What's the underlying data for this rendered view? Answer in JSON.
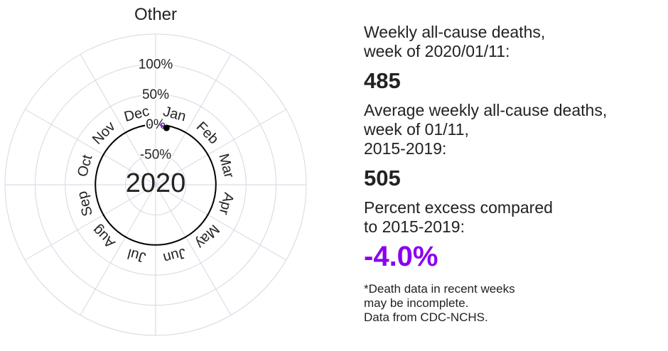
{
  "chart_data": {
    "type": "radial-line",
    "title": "Other",
    "center_label": "2020",
    "radial_axis": {
      "labels": [
        "100%",
        "50%",
        "0%",
        "-50%"
      ],
      "values": [
        100,
        50,
        0,
        -50
      ],
      "range": [
        -100,
        150
      ]
    },
    "months": [
      "Jan",
      "Feb",
      "Mar",
      "Apr",
      "May",
      "Jun",
      "Jul",
      "Aug",
      "Sep",
      "Oct",
      "Nov",
      "Dec"
    ],
    "grid": true,
    "series": [
      {
        "name": "Percent excess 2020",
        "color": "#8a2be2",
        "points": [
          {
            "day_of_year": 4,
            "value": 0
          },
          {
            "day_of_year": 11,
            "value": -4.0
          }
        ]
      }
    ],
    "current_point": {
      "day_of_year": 11,
      "value": -4.0
    }
  },
  "info": {
    "weekly_label": "Weekly all-cause deaths,\nweek of 2020/01/11:",
    "weekly_value": "485",
    "average_label": "Average weekly all-cause deaths,\nweek of 01/11,\n2015-2019:",
    "average_value": "505",
    "excess_label": "Percent excess compared\nto 2015-2019:",
    "excess_value": "-4.0%",
    "excess_color": "#8a00ee",
    "footnote": "*Death data in recent weeks\nmay be incomplete.\nData from CDC-NCHS."
  }
}
